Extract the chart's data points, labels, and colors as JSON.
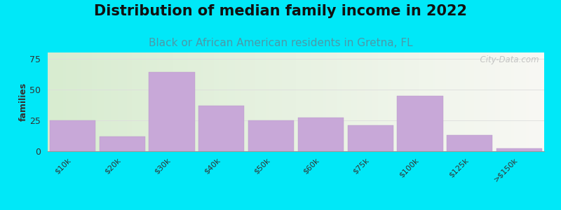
{
  "title": "Distribution of median family income in 2022",
  "subtitle": "Black or African American residents in Gretna, FL",
  "categories": [
    "$10k",
    "$20k",
    "$30k",
    "$40k",
    "$50k",
    "$60k",
    "$75k",
    "$100k",
    "$125k",
    ">$150k"
  ],
  "values": [
    25,
    12,
    64,
    37,
    25,
    27,
    21,
    45,
    13,
    2
  ],
  "bar_color": "#c8a8d8",
  "bar_edge_color": "#b898c8",
  "ylabel": "families",
  "ylim": [
    0,
    80
  ],
  "yticks": [
    0,
    25,
    50,
    75
  ],
  "background_outer": "#00e8f8",
  "title_fontsize": 15,
  "subtitle_fontsize": 11,
  "subtitle_color": "#4a9aaa",
  "watermark": "  City-Data.com",
  "grid_color": "#dddddd",
  "grad_left": "#d8ecd0",
  "grad_right": "#f5f5f0"
}
